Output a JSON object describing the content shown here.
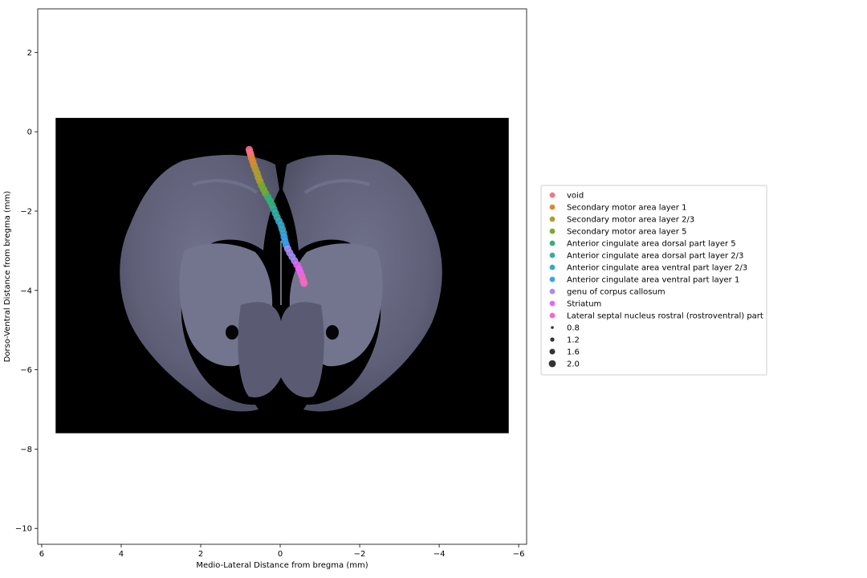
{
  "chart_data": {
    "type": "scatter",
    "xlabel": "Medio-Lateral Distance from bregma (mm)",
    "ylabel": "Dorso-Ventral Distance from bregma (mm)",
    "xlim": [
      6.1,
      -6.2
    ],
    "ylim": [
      -10.4,
      3.1
    ],
    "x_ticks": [
      6,
      4,
      2,
      0,
      -2,
      -4,
      -6
    ],
    "y_ticks": [
      2,
      0,
      -2,
      -4,
      -6,
      -8,
      -10
    ],
    "x_tick_labels": [
      "6",
      "4",
      "2",
      "0",
      "−2",
      "−4",
      "−6"
    ],
    "y_tick_labels": [
      "2",
      "0",
      "−2",
      "−4",
      "−6",
      "−8",
      "−10"
    ],
    "background_image": {
      "description": "coronal brain section",
      "extent": {
        "x": [
          5.65,
          -5.75
        ],
        "y": [
          -7.6,
          0.35
        ]
      }
    },
    "regions": [
      {
        "name": "void",
        "color": "#f77189",
        "points": [
          [
            0.78,
            -0.45
          ],
          [
            0.76,
            -0.52
          ],
          [
            0.74,
            -0.58
          ]
        ]
      },
      {
        "name": "Secondary motor area layer 1",
        "color": "#dc8932",
        "points": [
          [
            0.72,
            -0.66
          ],
          [
            0.69,
            -0.75
          ],
          [
            0.66,
            -0.85
          ]
        ]
      },
      {
        "name": "Secondary motor area layer 2/3",
        "color": "#ae9d31",
        "points": [
          [
            0.62,
            -0.95
          ],
          [
            0.58,
            -1.05
          ],
          [
            0.55,
            -1.15
          ],
          [
            0.51,
            -1.25
          ]
        ]
      },
      {
        "name": "Secondary motor area layer 5",
        "color": "#77ab31",
        "points": [
          [
            0.47,
            -1.35
          ],
          [
            0.42,
            -1.45
          ],
          [
            0.37,
            -1.55
          ]
        ]
      },
      {
        "name": "Anterior cingulate area dorsal part layer 5",
        "color": "#33b07a",
        "points": [
          [
            0.31,
            -1.65
          ],
          [
            0.25,
            -1.75
          ],
          [
            0.2,
            -1.85
          ]
        ]
      },
      {
        "name": "Anterior cingulate area dorsal part layer 2/3",
        "color": "#36ada4",
        "points": [
          [
            0.16,
            -1.95
          ],
          [
            0.12,
            -2.05
          ],
          [
            0.08,
            -2.15
          ]
        ]
      },
      {
        "name": "Anterior cingulate area ventral part layer 2/3",
        "color": "#38a9c5",
        "points": [
          [
            0.03,
            -2.25
          ],
          [
            -0.02,
            -2.35
          ],
          [
            -0.05,
            -2.45
          ],
          [
            -0.08,
            -2.55
          ]
        ]
      },
      {
        "name": "Anterior cingulate area ventral part layer 1",
        "color": "#3ba3ec",
        "points": [
          [
            -0.1,
            -2.65
          ],
          [
            -0.12,
            -2.75
          ],
          [
            -0.15,
            -2.85
          ]
        ]
      },
      {
        "name": "genu of corpus callosum",
        "color": "#a48cf4",
        "points": [
          [
            -0.19,
            -2.95
          ],
          [
            -0.24,
            -3.05
          ],
          [
            -0.3,
            -3.15
          ],
          [
            -0.36,
            -3.25
          ]
        ]
      },
      {
        "name": "Striatum",
        "color": "#e866f4",
        "points": [
          [
            -0.42,
            -3.35
          ],
          [
            -0.47,
            -3.45
          ],
          [
            -0.51,
            -3.55
          ]
        ]
      },
      {
        "name": "Lateral septal nucleus rostral (rostroventral) part",
        "color": "#f668c2",
        "points": [
          [
            -0.55,
            -3.65
          ],
          [
            -0.58,
            -3.75
          ],
          [
            -0.6,
            -3.82
          ]
        ]
      }
    ],
    "size_legend": [
      {
        "label": "0.8",
        "value": 0.8
      },
      {
        "label": "1.2",
        "value": 1.2
      },
      {
        "label": "1.6",
        "value": 1.6
      },
      {
        "label": "2.0",
        "value": 2.0
      }
    ],
    "legend_position": "right",
    "grid": false
  }
}
